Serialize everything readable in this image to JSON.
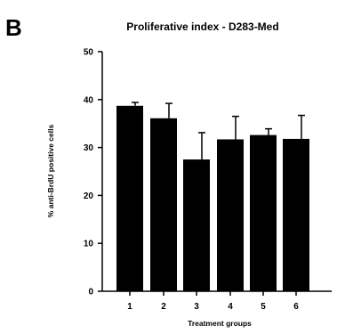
{
  "panel_label": "B",
  "chart_data": {
    "type": "bar",
    "title": "Proliferative index - D283-Med",
    "xlabel": "Treatment groups",
    "ylabel": "% anti-BrdU positive cells",
    "categories": [
      "1",
      "2",
      "3",
      "4",
      "5",
      "6"
    ],
    "values": [
      38.7,
      36.1,
      27.5,
      31.7,
      32.6,
      31.8
    ],
    "errors": [
      0.7,
      3.1,
      5.6,
      4.8,
      1.3,
      4.9
    ],
    "ylim": [
      0,
      50
    ],
    "yticks": [
      0,
      10,
      20,
      30,
      40,
      50
    ],
    "grid": false,
    "legend": "none",
    "bar_color": "#000000"
  }
}
